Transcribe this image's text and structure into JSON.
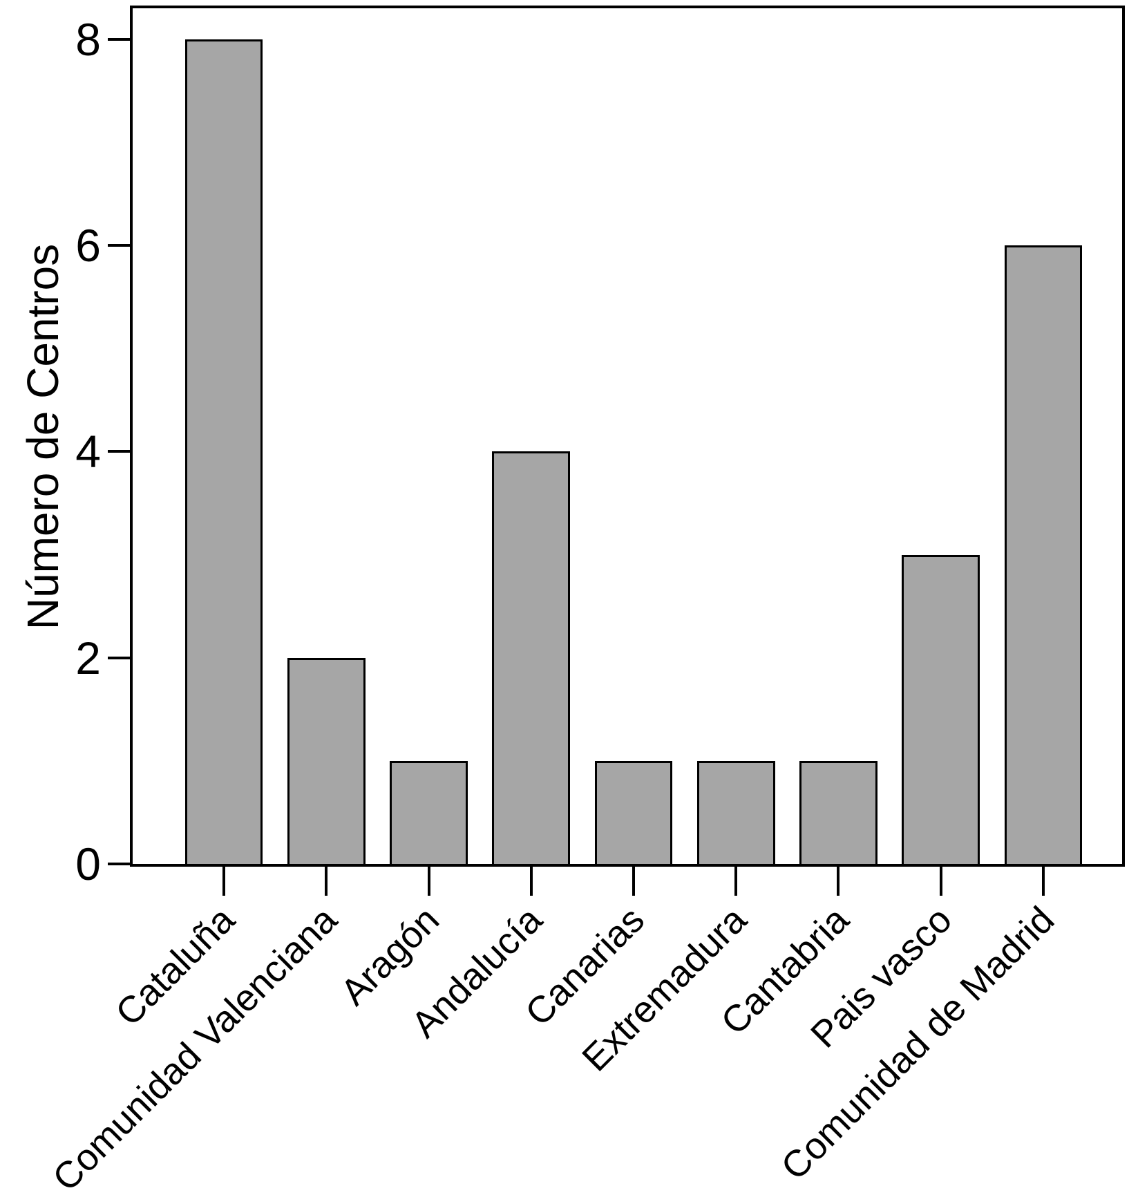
{
  "chart_data": {
    "type": "bar",
    "title": "",
    "xlabel": "",
    "ylabel": "Número de Centros",
    "categories": [
      "Cataluña",
      "Comunidad Valenciana",
      "Aragón",
      "Andalucía",
      "Canarias",
      "Extremadura",
      "Cantabria",
      "Pais vasco",
      "Comunidad de Madrid"
    ],
    "values": [
      8,
      2,
      1,
      4,
      1,
      1,
      1,
      3,
      6
    ],
    "yticks": [
      8,
      6,
      4,
      2,
      0
    ],
    "ylim": [
      0,
      8.3
    ],
    "grid": false,
    "legend_position": "none",
    "bar_color": "#a6a6a6",
    "bar_border_color": "#000000",
    "axis_color": "#000000",
    "background_color": "#ffffff"
  }
}
